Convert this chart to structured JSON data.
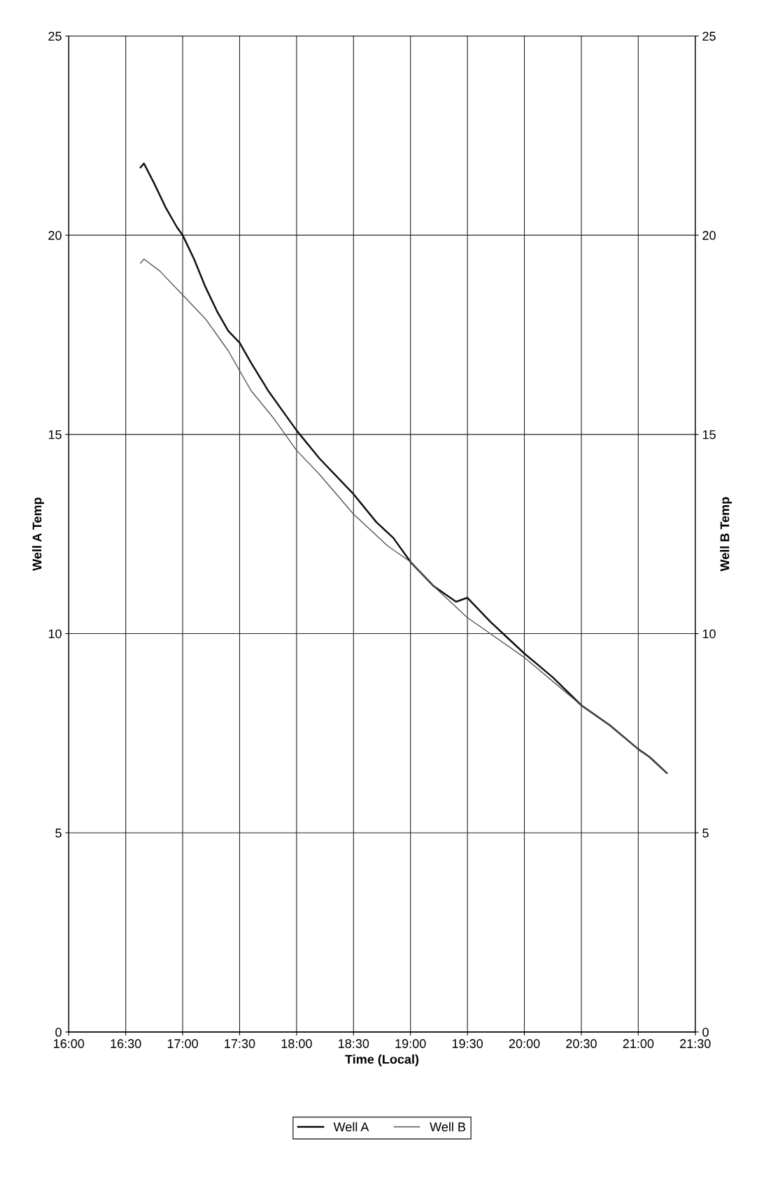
{
  "chart_data": {
    "type": "line",
    "xlabel": "Time (Local)",
    "ylabel": "Well A Temp",
    "y2label": "Well B Temp",
    "xlim": [
      16,
      21.5
    ],
    "xticks": [
      {
        "value": 16,
        "label": "16:00"
      },
      {
        "value": 16.5,
        "label": "16:30"
      },
      {
        "value": 17,
        "label": "17:00"
      },
      {
        "value": 17.5,
        "label": "17:30"
      },
      {
        "value": 18,
        "label": "18:00"
      },
      {
        "value": 18.5,
        "label": "18:30"
      },
      {
        "value": 19,
        "label": "19:00"
      },
      {
        "value": 19.5,
        "label": "19:30"
      },
      {
        "value": 20,
        "label": "20:00"
      },
      {
        "value": 20.5,
        "label": "20:30"
      },
      {
        "value": 21,
        "label": "21:00"
      },
      {
        "value": 21.5,
        "label": "21:30"
      }
    ],
    "ylim": [
      0,
      25
    ],
    "yticks": [
      0,
      5,
      10,
      15,
      20,
      25
    ],
    "y2lim": [
      0,
      25
    ],
    "y2ticks": [
      0,
      5,
      10,
      15,
      20,
      25
    ],
    "grid": true,
    "legend": "bottom",
    "series": [
      {
        "name": "Well A",
        "color": "#111111",
        "x": [
          16.63,
          16.66,
          16.75,
          16.85,
          16.95,
          17.0,
          17.1,
          17.2,
          17.3,
          17.4,
          17.5,
          17.6,
          17.75,
          17.9,
          18.0,
          18.2,
          18.4,
          18.5,
          18.7,
          18.85,
          19.0,
          19.2,
          19.4,
          19.5,
          19.7,
          19.85,
          20.0,
          20.25,
          20.5,
          20.75,
          21.0,
          21.1,
          21.25
        ],
        "values": [
          21.7,
          21.8,
          21.3,
          20.7,
          20.2,
          20.0,
          19.4,
          18.7,
          18.1,
          17.6,
          17.3,
          16.8,
          16.1,
          15.5,
          15.1,
          14.4,
          13.8,
          13.5,
          12.8,
          12.4,
          11.8,
          11.2,
          10.8,
          10.9,
          10.3,
          9.9,
          9.5,
          8.9,
          8.2,
          7.7,
          7.1,
          6.9,
          6.5
        ]
      },
      {
        "name": "Well B",
        "color": "#555555",
        "x": [
          16.63,
          16.66,
          16.8,
          17.0,
          17.2,
          17.4,
          17.5,
          17.6,
          17.8,
          18.0,
          18.2,
          18.5,
          18.8,
          19.0,
          19.2,
          19.5,
          19.7,
          20.0,
          20.25,
          20.5,
          20.75,
          21.0,
          21.1,
          21.25
        ],
        "values": [
          19.3,
          19.4,
          19.1,
          18.5,
          17.9,
          17.1,
          16.6,
          16.1,
          15.4,
          14.6,
          14.0,
          13.0,
          12.2,
          11.8,
          11.2,
          10.4,
          10.0,
          9.4,
          8.8,
          8.2,
          7.7,
          7.1,
          6.9,
          6.5
        ]
      }
    ]
  }
}
